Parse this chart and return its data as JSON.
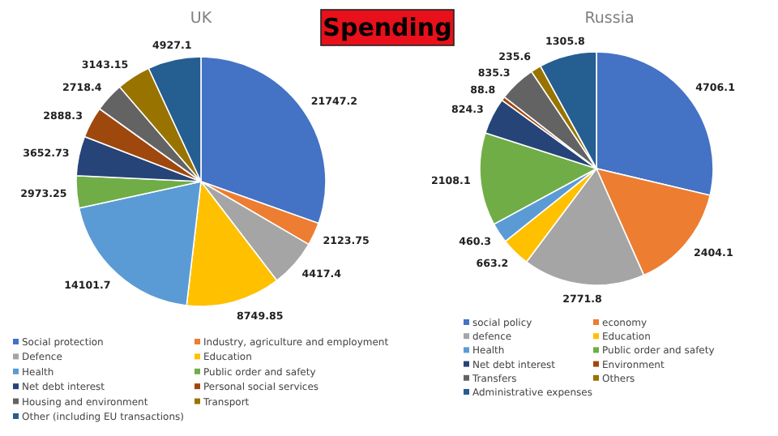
{
  "chart_data": [
    {
      "type": "pie",
      "title": "UK",
      "annotations": [
        "Spending"
      ],
      "data_labels": true,
      "legend": "bottom",
      "categories": [
        "Social protection",
        "Industry, agriculture and employment",
        "Defence",
        "Education",
        "Health",
        "Public order and safety",
        "Net debt interest",
        "Personal social services",
        "Housing and environment",
        "Transport",
        "Other (including EU transactions)"
      ],
      "values": [
        21747.2,
        2123.75,
        4417.4,
        8749.85,
        14101.7,
        2973.25,
        3652.73,
        2888.3,
        2718.4,
        3143.15,
        4927.1
      ],
      "colors": [
        "#4472c4",
        "#ed7d31",
        "#a5a5a5",
        "#ffc000",
        "#5b9bd5",
        "#70ad47",
        "#264478",
        "#9e480e",
        "#636363",
        "#997300",
        "#255e91"
      ]
    },
    {
      "type": "pie",
      "title": "Russia",
      "data_labels": true,
      "legend": "bottom",
      "categories": [
        "social policy",
        "economy",
        "defence",
        "Education",
        "Health",
        "Public order and safety",
        "Net debt interest",
        "Environment",
        "Transfers",
        "Others",
        "Administrative expenses"
      ],
      "values": [
        4706.1,
        2404.1,
        2771.8,
        663.2,
        460.3,
        2108.1,
        824.3,
        88.8,
        835.3,
        235.6,
        1305.8
      ],
      "colors": [
        "#4472c4",
        "#ed7d31",
        "#a5a5a5",
        "#ffc000",
        "#5b9bd5",
        "#70ad47",
        "#264478",
        "#9e480e",
        "#636363",
        "#997300",
        "#255e91"
      ]
    }
  ]
}
